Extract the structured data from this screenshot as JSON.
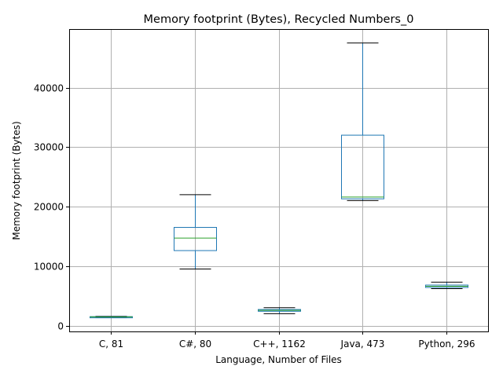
{
  "chart_data": {
    "type": "box",
    "title": "Memory footprint (Bytes), Recycled Numbers_0",
    "xlabel": "Language, Number of Files",
    "ylabel": "Memory footprint (Bytes)",
    "ylim": [
      -1000,
      49500
    ],
    "yticks": [
      0,
      10000,
      20000,
      30000,
      40000
    ],
    "grid": true,
    "categories": [
      "C, 81",
      "C#, 80",
      "C++, 1162",
      "Java, 473",
      "Python, 296"
    ],
    "boxes": [
      {
        "whislo": 1400,
        "q1": 1400,
        "med": 1450,
        "q3": 1500,
        "whishi": 1550
      },
      {
        "whislo": 9500,
        "q1": 12600,
        "med": 14700,
        "q3": 16500,
        "whishi": 22000
      },
      {
        "whislo": 2000,
        "q1": 2400,
        "med": 2550,
        "q3": 2700,
        "whishi": 3000
      },
      {
        "whislo": 21000,
        "q1": 21300,
        "med": 21600,
        "q3": 32000,
        "whishi": 47500
      },
      {
        "whislo": 6200,
        "q1": 6400,
        "med": 6600,
        "q3": 6800,
        "whishi": 7300
      }
    ]
  }
}
